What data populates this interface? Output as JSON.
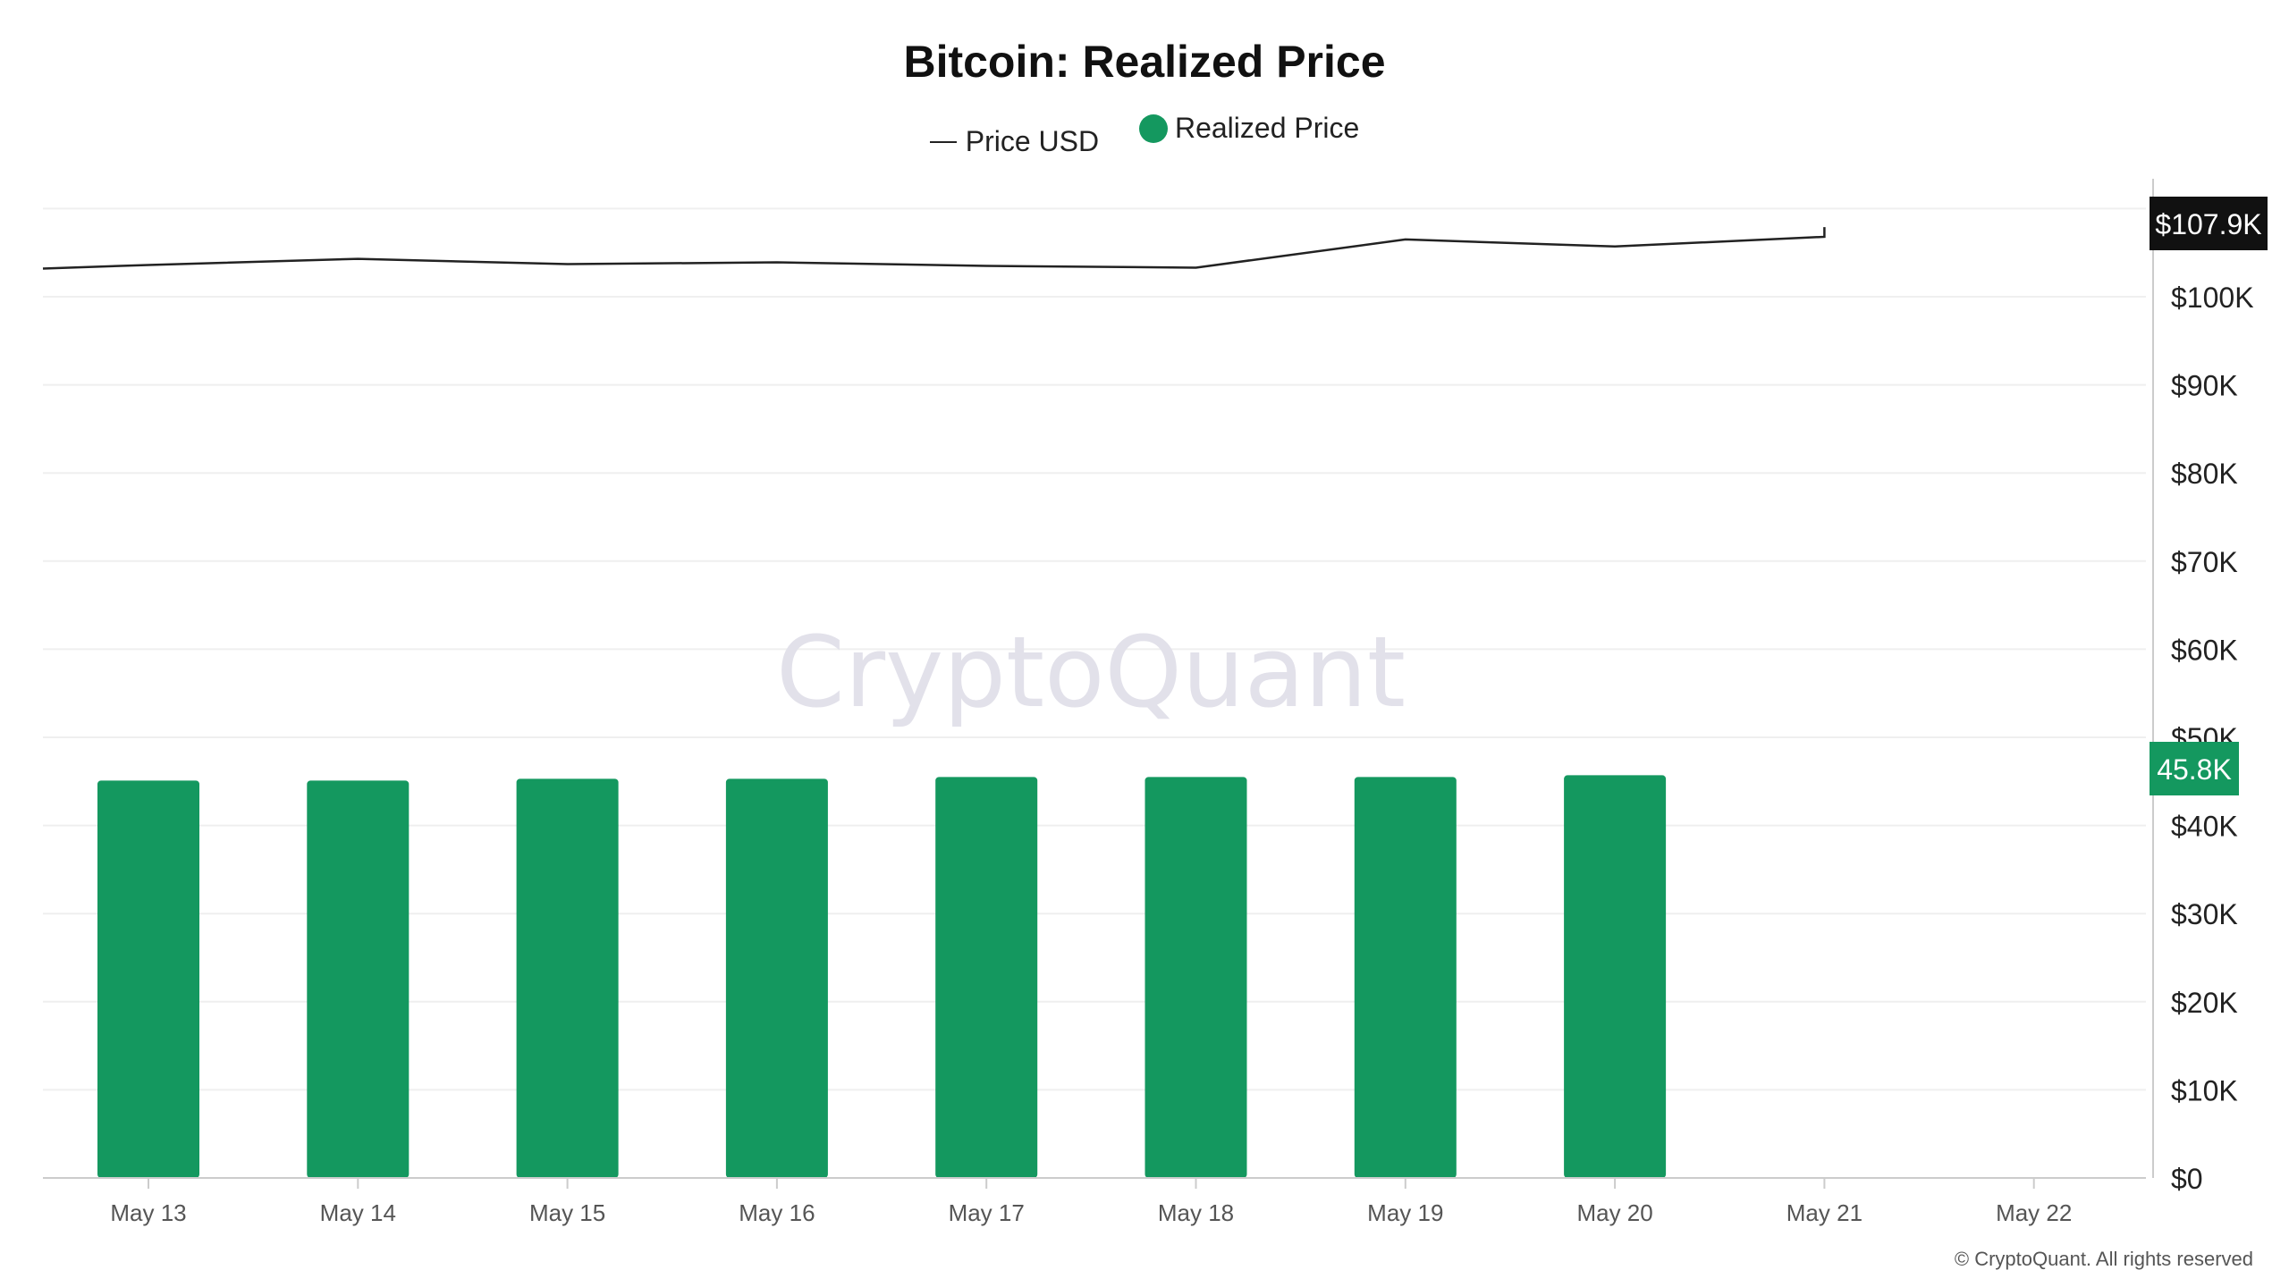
{
  "title": "Bitcoin: Realized Price",
  "watermark": "CryptoQuant",
  "footer": "© CryptoQuant. All rights reserved",
  "colors": {
    "realized": "#14985f",
    "price": "#222222",
    "price_badge": "#111111",
    "grid": "#efefef"
  },
  "chart_data": {
    "type": "bar",
    "categories": [
      "May 13",
      "May 14",
      "May 15",
      "May 16",
      "May 17",
      "May 18",
      "May 19",
      "May 20",
      "May 21",
      "May 22"
    ],
    "series": [
      {
        "name": "Realized Price",
        "type": "bar",
        "values": [
          45100,
          45100,
          45300,
          45300,
          45500,
          45500,
          45500,
          45700,
          null,
          null
        ]
      },
      {
        "name": "Price USD",
        "type": "line",
        "values": [
          103600,
          104300,
          103700,
          103900,
          103500,
          103300,
          106500,
          105700,
          106800,
          107900
        ]
      }
    ],
    "y_ticks": [
      "$0",
      "$10K",
      "$20K",
      "$30K",
      "$40K",
      "$50K",
      "$60K",
      "$70K",
      "$80K",
      "$90K",
      "$100K"
    ],
    "ylim": [
      0,
      110000
    ],
    "y_position": "right",
    "badges": {
      "price": "$107.9K",
      "realized": "45.8K"
    },
    "legend_position": "top-center"
  }
}
